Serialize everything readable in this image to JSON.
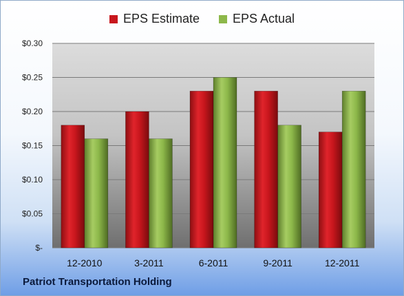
{
  "chart_data": {
    "type": "bar",
    "categories": [
      "12-2010",
      "3-2011",
      "6-2011",
      "9-2011",
      "12-2011"
    ],
    "series": [
      {
        "name": "EPS Estimate",
        "values": [
          0.18,
          0.2,
          0.23,
          0.23,
          0.17
        ],
        "color": "#c8161d"
      },
      {
        "name": "EPS Actual",
        "values": [
          0.16,
          0.16,
          0.25,
          0.18,
          0.23
        ],
        "color": "#8db84a"
      }
    ],
    "ylim": [
      0,
      0.3
    ],
    "yticks": [
      0,
      0.05,
      0.1,
      0.15,
      0.2,
      0.25,
      0.3
    ],
    "ytick_labels": [
      "$-",
      "$0.05",
      "$0.10",
      "$0.15",
      "$0.20",
      "$0.25",
      "$0.30"
    ],
    "grid": true,
    "legend_position": "top-center"
  },
  "footer": {
    "company": "Patriot Transportation Holding"
  }
}
